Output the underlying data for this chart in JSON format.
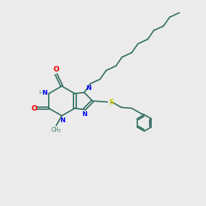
{
  "bg_color": "#ebebeb",
  "bond_color": "#2d6b5e",
  "n_color": "#0000ff",
  "o_color": "#ff0000",
  "s_color": "#cccc00",
  "h_color": "#6b9999",
  "linewidth": 1.3,
  "figsize": [
    3.0,
    3.0
  ],
  "dpi": 100,
  "xlim": [
    0,
    10
  ],
  "ylim": [
    0,
    10
  ]
}
